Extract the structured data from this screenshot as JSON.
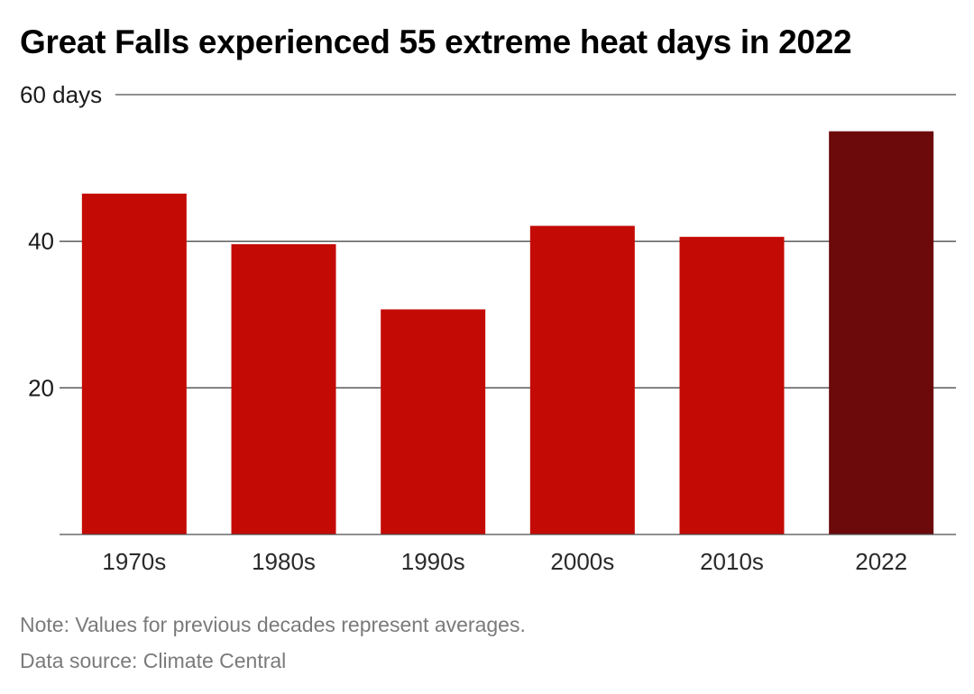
{
  "chart_data": {
    "type": "bar",
    "title": "Great Falls experienced 55 extreme heat days in 2022",
    "categories": [
      "1970s",
      "1980s",
      "1990s",
      "2000s",
      "2010s",
      "2022"
    ],
    "values": [
      46.5,
      39.6,
      30.7,
      42.1,
      40.6,
      55
    ],
    "ylim": [
      0,
      60
    ],
    "y_ticks": [
      {
        "value": 20,
        "label": "20"
      },
      {
        "value": 40,
        "label": "40"
      },
      {
        "value": 60,
        "label": "60 days"
      }
    ],
    "colors": {
      "bar": "#c40a04",
      "highlight_bar": "#6b090b",
      "grid": "#4d4d4d"
    },
    "highlight_category": "2022",
    "grid": true,
    "legend": "none"
  },
  "notes": {
    "note": "Note: Values for previous decades represent averages.",
    "source": "Data source: Climate Central"
  }
}
